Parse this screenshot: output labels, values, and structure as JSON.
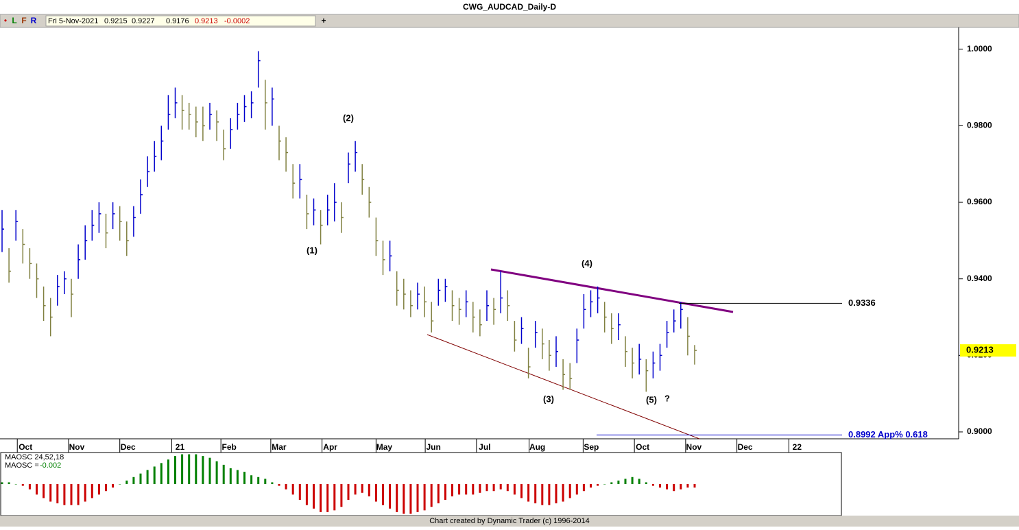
{
  "title": "CWG_AUDCAD_Daily-D",
  "toolbar": {
    "buttons": [
      "•",
      "L",
      "F",
      "R",
      "+"
    ]
  },
  "header": {
    "date": "Fri 5-Nov-2021",
    "open": 0.9215,
    "high": 0.9227,
    "low": 0.9176,
    "close": 0.9213,
    "change": -0.0002
  },
  "footer": "Chart created by Dynamic Trader  (c) 1996-2014",
  "chart_data": [
    {
      "type": "ohlc",
      "high": [
        0.958,
        0.948,
        0.958,
        0.953,
        0.948,
        0.944,
        0.938,
        0.935,
        0.941,
        0.942,
        0.94,
        0.949,
        0.954,
        0.958,
        0.96,
        0.957,
        0.96,
        0.959,
        0.955,
        0.959,
        0.966,
        0.972,
        0.976,
        0.98,
        0.988,
        0.99,
        0.988,
        0.986,
        0.985,
        0.985,
        0.986,
        0.984,
        0.979,
        0.982,
        0.986,
        0.988,
        0.989,
        0.9995,
        0.992,
        0.99,
        0.98,
        0.977,
        0.97,
        0.97,
        0.962,
        0.961,
        0.958,
        0.962,
        0.965,
        0.96,
        0.973,
        0.976,
        0.97,
        0.964,
        0.956,
        0.95,
        0.95,
        0.942,
        0.94,
        0.937,
        0.939,
        0.938,
        0.934,
        0.94,
        0.94,
        0.937,
        0.935,
        0.937,
        0.934,
        0.932,
        0.937,
        0.935,
        0.942,
        0.937,
        0.929,
        0.93,
        0.922,
        0.929,
        0.927,
        0.924,
        0.925,
        0.919,
        0.918,
        0.927,
        0.936,
        0.937,
        0.938,
        0.934,
        0.931,
        0.931,
        0.925,
        0.922,
        0.923,
        0.919,
        0.921,
        0.923,
        0.929,
        0.932,
        0.934,
        0.93,
        0.9227
      ],
      "low": [
        0.947,
        0.939,
        0.95,
        0.944,
        0.94,
        0.935,
        0.929,
        0.925,
        0.933,
        0.936,
        0.93,
        0.94,
        0.945,
        0.95,
        0.952,
        0.948,
        0.953,
        0.95,
        0.946,
        0.951,
        0.957,
        0.964,
        0.968,
        0.971,
        0.979,
        0.982,
        0.979,
        0.979,
        0.977,
        0.976,
        0.979,
        0.976,
        0.971,
        0.974,
        0.979,
        0.981,
        0.982,
        0.99,
        0.979,
        0.98,
        0.971,
        0.968,
        0.961,
        0.961,
        0.953,
        0.954,
        0.949,
        0.954,
        0.955,
        0.952,
        0.965,
        0.968,
        0.962,
        0.956,
        0.946,
        0.941,
        0.942,
        0.933,
        0.932,
        0.93,
        0.932,
        0.93,
        0.926,
        0.933,
        0.934,
        0.929,
        0.928,
        0.93,
        0.926,
        0.925,
        0.929,
        0.928,
        0.931,
        0.929,
        0.921,
        0.923,
        0.914,
        0.922,
        0.919,
        0.916,
        0.917,
        0.911,
        0.911,
        0.918,
        0.927,
        0.93,
        0.931,
        0.926,
        0.923,
        0.924,
        0.917,
        0.914,
        0.915,
        0.9105,
        0.914,
        0.916,
        0.922,
        0.926,
        0.927,
        0.92,
        0.9176
      ],
      "close": [
        0.953,
        0.942,
        0.955,
        0.949,
        0.944,
        0.94,
        0.933,
        0.93,
        0.938,
        0.94,
        0.936,
        0.945,
        0.95,
        0.954,
        0.957,
        0.952,
        0.957,
        0.955,
        0.95,
        0.956,
        0.962,
        0.968,
        0.972,
        0.976,
        0.983,
        0.986,
        0.984,
        0.983,
        0.981,
        0.98,
        0.983,
        0.981,
        0.974,
        0.979,
        0.983,
        0.985,
        0.986,
        0.997,
        0.986,
        0.987,
        0.976,
        0.973,
        0.965,
        0.966,
        0.957,
        0.958,
        0.954,
        0.958,
        0.96,
        0.956,
        0.97,
        0.973,
        0.966,
        0.96,
        0.95,
        0.945,
        0.946,
        0.937,
        0.936,
        0.933,
        0.936,
        0.934,
        0.929,
        0.937,
        0.938,
        0.933,
        0.932,
        0.934,
        0.93,
        0.928,
        0.933,
        0.932,
        0.935,
        0.933,
        0.924,
        0.927,
        0.917,
        0.926,
        0.923,
        0.92,
        0.921,
        0.915,
        0.914,
        0.924,
        0.932,
        0.934,
        0.935,
        0.93,
        0.927,
        0.928,
        0.921,
        0.918,
        0.919,
        0.916,
        0.918,
        0.92,
        0.926,
        0.929,
        0.932,
        0.925,
        0.9213
      ],
      "up_color": "#0000cc",
      "down_color": "#808040",
      "ylim": [
        0.8982,
        1.0057
      ],
      "yticks": [
        {
          "value": 0.9,
          "label": "0.9000"
        },
        {
          "value": 0.92,
          "label": "0.9200"
        },
        {
          "value": 0.94,
          "label": "0.9400"
        },
        {
          "value": 0.96,
          "label": "0.9600"
        },
        {
          "value": 0.98,
          "label": "0.9800"
        },
        {
          "value": 1,
          "label": "1.0000"
        }
      ],
      "xticks": [
        {
          "value": 2.2,
          "label": "Oct"
        },
        {
          "value": 9.6,
          "label": "Nov"
        },
        {
          "value": 17,
          "label": "Dec"
        },
        {
          "value": 24.5,
          "label": "21"
        },
        {
          "value": 31.6,
          "label": "Feb"
        },
        {
          "value": 38.8,
          "label": "Mar"
        },
        {
          "value": 46.2,
          "label": "Apr"
        },
        {
          "value": 54,
          "label": "May"
        },
        {
          "value": 61.1,
          "label": "Jun"
        },
        {
          "value": 68.5,
          "label": "Jul"
        },
        {
          "value": 76.1,
          "label": "Aug"
        },
        {
          "value": 83.9,
          "label": "Sep"
        },
        {
          "value": 91.3,
          "label": "Oct"
        },
        {
          "value": 98.7,
          "label": "Nov"
        },
        {
          "value": 106.1,
          "label": "Dec"
        },
        {
          "value": 113.6,
          "label": "22"
        }
      ],
      "annotations": [
        "(1)",
        "(2)",
        "(3)",
        "(4)",
        "(5)",
        "?"
      ],
      "levels": [
        {
          "value": 0.9336,
          "color": "#000000"
        },
        {
          "value": 0.8992,
          "label": "0.8992 App% 0.618",
          "color": "#0000cc"
        }
      ],
      "last_price_color": "#ffff00"
    },
    {
      "type": "bar",
      "title": "MAOSC 24,52,18",
      "readout_label": "MAOSC =",
      "readout": -0.002,
      "values": [
        0.001,
        0.001,
        0,
        -0.001,
        -0.003,
        -0.006,
        -0.008,
        -0.01,
        -0.011,
        -0.012,
        -0.012,
        -0.012,
        -0.01,
        -0.008,
        -0.006,
        -0.004,
        -0.002,
        0,
        0.002,
        0.004,
        0.006,
        0.008,
        0.01,
        0.012,
        0.014,
        0.016,
        0.017,
        0.017,
        0.017,
        0.016,
        0.015,
        0.013,
        0.011,
        0.009,
        0.008,
        0.007,
        0.005,
        0.004,
        0.003,
        0.001,
        -0.001,
        -0.003,
        -0.006,
        -0.009,
        -0.012,
        -0.014,
        -0.016,
        -0.016,
        -0.015,
        -0.013,
        -0.009,
        -0.006,
        -0.005,
        -0.007,
        -0.01,
        -0.012,
        -0.014,
        -0.016,
        -0.017,
        -0.017,
        -0.016,
        -0.015,
        -0.013,
        -0.011,
        -0.009,
        -0.007,
        -0.006,
        -0.006,
        -0.006,
        -0.005,
        -0.004,
        -0.004,
        -0.003,
        -0.004,
        -0.006,
        -0.008,
        -0.01,
        -0.011,
        -0.012,
        -0.012,
        -0.011,
        -0.01,
        -0.008,
        -0.006,
        -0.004,
        -0.002,
        -0.001,
        0,
        0.001,
        0.002,
        0.003,
        0.004,
        0.003,
        0.001,
        -0.001,
        -0.002,
        -0.003,
        -0.004,
        -0.003,
        -0.002,
        -0.002
      ],
      "pos_color": "#008000",
      "neg_color": "#cc0000",
      "ylim": [
        -0.018,
        0.018
      ]
    }
  ]
}
